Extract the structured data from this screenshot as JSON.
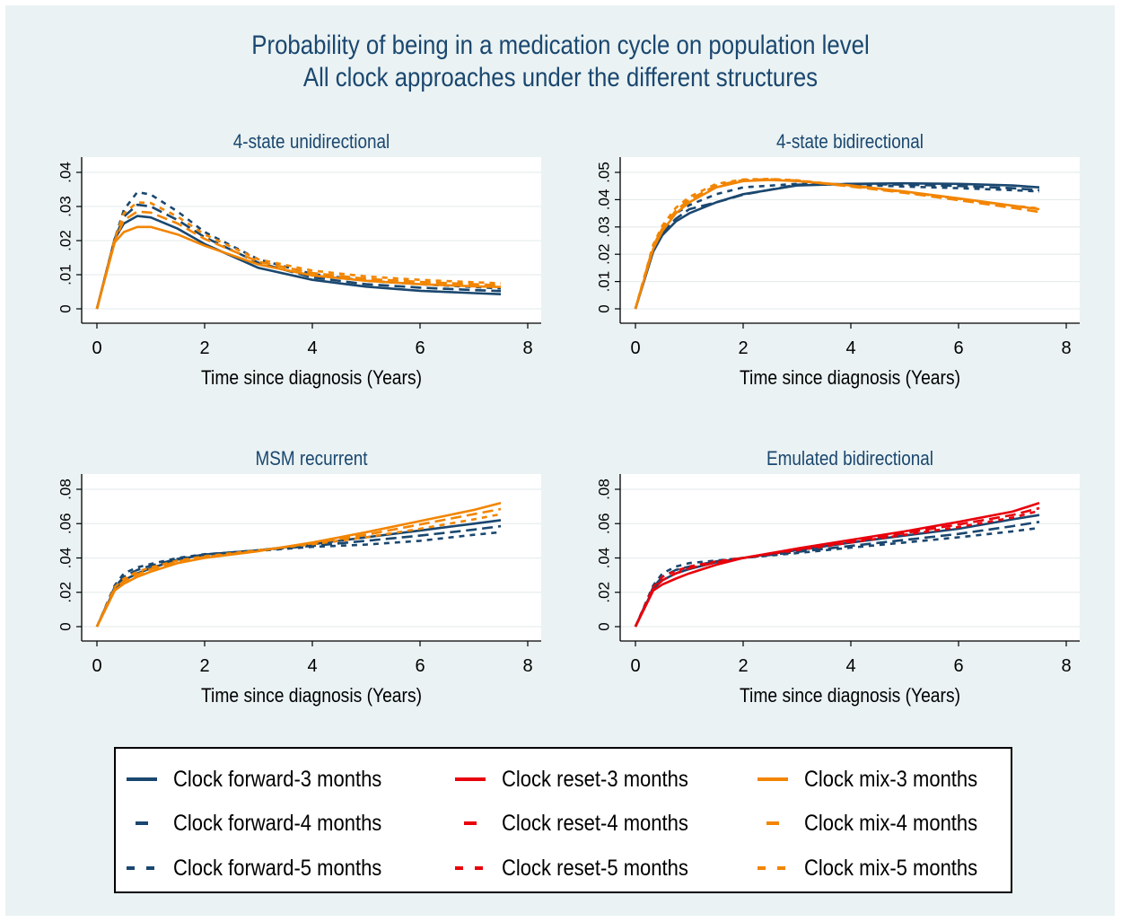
{
  "title_lines": [
    "Probability of being in a medication cycle on population level",
    "All clock approaches under the different structures"
  ],
  "colors": {
    "clock_forward": "#1a476f",
    "clock_reset": "#e8000b",
    "clock_mix": "#f28500",
    "panel_background": "#eaf2f3",
    "plot_background": "#ffffff",
    "grid": "#e8eded"
  },
  "legend": {
    "items": [
      {
        "label": "Clock forward-3 months",
        "color": "#1a476f",
        "dash": "solid"
      },
      {
        "label": "Clock reset-3 months",
        "color": "#e8000b",
        "dash": "solid"
      },
      {
        "label": "Clock mix-3 months",
        "color": "#f28500",
        "dash": "solid"
      },
      {
        "label": "Clock forward-4 months",
        "color": "#1a476f",
        "dash": "longdash"
      },
      {
        "label": "Clock reset-4 months",
        "color": "#e8000b",
        "dash": "longdash"
      },
      {
        "label": "Clock mix-4 months",
        "color": "#f28500",
        "dash": "longdash"
      },
      {
        "label": "Clock forward-5 months",
        "color": "#1a476f",
        "dash": "shortdash"
      },
      {
        "label": "Clock reset-5 months",
        "color": "#e8000b",
        "dash": "shortdash"
      },
      {
        "label": "Clock mix-5 months",
        "color": "#f28500",
        "dash": "shortdash"
      }
    ]
  },
  "chart_data": [
    {
      "type": "line",
      "title": "4-state unidirectional",
      "xlabel": "Time since diagnosis (Years)",
      "ylabel": "",
      "xlim": [
        0,
        8
      ],
      "ylim": [
        0,
        0.04
      ],
      "xticks": [
        "0",
        "2",
        "4",
        "6",
        "8"
      ],
      "yticks": [
        "0",
        ".01",
        ".02",
        ".03",
        ".04"
      ],
      "grid": true,
      "series": [
        {
          "name": "Clock forward-3 months",
          "color": "#1a476f",
          "dash": "solid",
          "x": [
            0,
            0.33,
            0.5,
            0.75,
            1,
            1.5,
            2,
            3,
            4,
            5,
            6,
            7,
            7.5
          ],
          "y": [
            0,
            0.0205,
            0.025,
            0.0272,
            0.0268,
            0.0235,
            0.019,
            0.012,
            0.0085,
            0.0065,
            0.0053,
            0.0046,
            0.0043
          ]
        },
        {
          "name": "Clock forward-4 months",
          "color": "#1a476f",
          "dash": "longdash",
          "x": [
            0,
            0.33,
            0.5,
            0.75,
            1,
            1.5,
            2,
            3,
            4,
            5,
            6,
            7,
            7.5
          ],
          "y": [
            0,
            0.0205,
            0.027,
            0.0305,
            0.03,
            0.026,
            0.021,
            0.0135,
            0.0092,
            0.0072,
            0.0062,
            0.0055,
            0.0052
          ]
        },
        {
          "name": "Clock forward-5 months",
          "color": "#1a476f",
          "dash": "shortdash",
          "x": [
            0,
            0.33,
            0.5,
            0.75,
            1,
            1.5,
            2,
            3,
            4,
            5,
            6,
            7,
            7.5
          ],
          "y": [
            0,
            0.0205,
            0.029,
            0.0342,
            0.0335,
            0.0285,
            0.0225,
            0.0145,
            0.0102,
            0.0082,
            0.0072,
            0.0064,
            0.006
          ]
        },
        {
          "name": "Clock mix-3 months",
          "color": "#f28500",
          "dash": "solid",
          "x": [
            0,
            0.33,
            0.5,
            0.75,
            1,
            1.5,
            2,
            3,
            4,
            5,
            6,
            7,
            7.5
          ],
          "y": [
            0,
            0.0195,
            0.0225,
            0.024,
            0.024,
            0.0218,
            0.0185,
            0.013,
            0.0098,
            0.0082,
            0.0072,
            0.0066,
            0.0064
          ]
        },
        {
          "name": "Clock mix-4 months",
          "color": "#f28500",
          "dash": "longdash",
          "x": [
            0,
            0.33,
            0.5,
            0.75,
            1,
            1.5,
            2,
            3,
            4,
            5,
            6,
            7,
            7.5
          ],
          "y": [
            0,
            0.02,
            0.026,
            0.0285,
            0.0282,
            0.025,
            0.0205,
            0.0138,
            0.0105,
            0.0088,
            0.0079,
            0.0072,
            0.0069
          ]
        },
        {
          "name": "Clock mix-5 months",
          "color": "#f28500",
          "dash": "shortdash",
          "x": [
            0,
            0.33,
            0.5,
            0.75,
            1,
            1.5,
            2,
            3,
            4,
            5,
            6,
            7,
            7.5
          ],
          "y": [
            0,
            0.0205,
            0.028,
            0.0312,
            0.031,
            0.027,
            0.0218,
            0.0145,
            0.0112,
            0.0095,
            0.0085,
            0.0078,
            0.0075
          ]
        }
      ]
    },
    {
      "type": "line",
      "title": "4-state bidirectional",
      "xlabel": "Time since diagnosis (Years)",
      "ylabel": "",
      "xlim": [
        0,
        8
      ],
      "ylim": [
        0,
        0.05
      ],
      "xticks": [
        "0",
        "2",
        "4",
        "6",
        "8"
      ],
      "yticks": [
        "0",
        ".01",
        ".02",
        ".03",
        ".04",
        ".05"
      ],
      "grid": true,
      "series": [
        {
          "name": "Clock forward-3 months",
          "color": "#1a476f",
          "dash": "solid",
          "x": [
            0,
            0.33,
            0.5,
            0.75,
            1,
            1.5,
            2,
            3,
            4,
            5,
            6,
            7,
            7.5
          ],
          "y": [
            0,
            0.021,
            0.027,
            0.032,
            0.035,
            0.039,
            0.042,
            0.0452,
            0.0458,
            0.046,
            0.0458,
            0.0452,
            0.0445
          ]
        },
        {
          "name": "Clock forward-4 months",
          "color": "#1a476f",
          "dash": "longdash",
          "x": [
            0,
            0.33,
            0.5,
            0.75,
            1,
            1.5,
            2,
            3,
            4,
            5,
            6,
            7,
            7.5
          ],
          "y": [
            0,
            0.022,
            0.028,
            0.033,
            0.0365,
            0.039,
            0.0418,
            0.0455,
            0.0458,
            0.0455,
            0.045,
            0.0442,
            0.0435
          ]
        },
        {
          "name": "Clock forward-5 months",
          "color": "#1a476f",
          "dash": "shortdash",
          "x": [
            0,
            0.33,
            0.5,
            0.75,
            1,
            1.5,
            2,
            3,
            4,
            5,
            6,
            7,
            7.5
          ],
          "y": [
            0,
            0.023,
            0.0295,
            0.035,
            0.038,
            0.042,
            0.0445,
            0.0458,
            0.0455,
            0.0448,
            0.0442,
            0.0435,
            0.043
          ]
        },
        {
          "name": "Clock mix-3 months",
          "color": "#f28500",
          "dash": "solid",
          "x": [
            0,
            0.33,
            0.5,
            0.75,
            1,
            1.5,
            2,
            2.5,
            3,
            4,
            5,
            6,
            7,
            7.5
          ],
          "y": [
            0,
            0.022,
            0.0285,
            0.035,
            0.039,
            0.0445,
            0.0468,
            0.0472,
            0.0468,
            0.0452,
            0.043,
            0.0405,
            0.0378,
            0.0365
          ]
        },
        {
          "name": "Clock mix-4 months",
          "color": "#f28500",
          "dash": "longdash",
          "x": [
            0,
            0.33,
            0.5,
            0.75,
            1,
            1.5,
            2,
            2.5,
            3,
            4,
            5,
            6,
            7,
            7.5
          ],
          "y": [
            0,
            0.023,
            0.0295,
            0.036,
            0.04,
            0.0452,
            0.0472,
            0.0475,
            0.047,
            0.0448,
            0.0425,
            0.0398,
            0.037,
            0.0355
          ]
        },
        {
          "name": "Clock mix-5 months",
          "color": "#f28500",
          "dash": "shortdash",
          "x": [
            0,
            0.33,
            0.5,
            0.75,
            1,
            1.5,
            2,
            2.5,
            3,
            4,
            5,
            6,
            7,
            7.5
          ],
          "y": [
            0,
            0.0235,
            0.0305,
            0.037,
            0.041,
            0.0458,
            0.0474,
            0.0476,
            0.0471,
            0.045,
            0.0428,
            0.0403,
            0.0378,
            0.0368
          ]
        }
      ]
    },
    {
      "type": "line",
      "title": "MSM recurrent",
      "xlabel": "Time since diagnosis (Years)",
      "ylabel": "",
      "xlim": [
        0,
        8
      ],
      "ylim": [
        0,
        0.08
      ],
      "xticks": [
        "0",
        "2",
        "4",
        "6",
        "8"
      ],
      "yticks": [
        "0",
        ".02",
        ".04",
        ".06",
        ".08"
      ],
      "grid": true,
      "series": [
        {
          "name": "Clock forward-3 months",
          "color": "#1a476f",
          "dash": "solid",
          "x": [
            0,
            0.33,
            0.5,
            0.75,
            1,
            1.5,
            2,
            3,
            4,
            5,
            6,
            7,
            7.5
          ],
          "y": [
            0,
            0.022,
            0.027,
            0.031,
            0.034,
            0.039,
            0.042,
            0.0445,
            0.048,
            0.052,
            0.056,
            0.06,
            0.062
          ]
        },
        {
          "name": "Clock forward-4 months",
          "color": "#1a476f",
          "dash": "longdash",
          "x": [
            0,
            0.33,
            0.5,
            0.75,
            1,
            1.5,
            2,
            3,
            4,
            5,
            6,
            7,
            7.5
          ],
          "y": [
            0,
            0.023,
            0.029,
            0.033,
            0.0355,
            0.0395,
            0.042,
            0.0445,
            0.047,
            0.05,
            0.053,
            0.0565,
            0.0585
          ]
        },
        {
          "name": "Clock forward-5 months",
          "color": "#1a476f",
          "dash": "shortdash",
          "x": [
            0,
            0.33,
            0.5,
            0.75,
            1,
            1.5,
            2,
            3,
            4,
            5,
            6,
            7,
            7.5
          ],
          "y": [
            0,
            0.024,
            0.031,
            0.0345,
            0.0365,
            0.04,
            0.0422,
            0.0442,
            0.0465,
            0.0478,
            0.05,
            0.0535,
            0.055
          ]
        },
        {
          "name": "Clock mix-3 months",
          "color": "#f28500",
          "dash": "solid",
          "x": [
            0,
            0.33,
            0.5,
            0.75,
            1,
            1.5,
            2,
            3,
            4,
            5,
            6,
            7,
            7.5
          ],
          "y": [
            0,
            0.021,
            0.025,
            0.029,
            0.032,
            0.037,
            0.04,
            0.044,
            0.049,
            0.055,
            0.0615,
            0.068,
            0.072
          ]
        },
        {
          "name": "Clock mix-4 months",
          "color": "#f28500",
          "dash": "longdash",
          "x": [
            0,
            0.33,
            0.5,
            0.75,
            1,
            1.5,
            2,
            3,
            4,
            5,
            6,
            7,
            7.5
          ],
          "y": [
            0,
            0.022,
            0.0265,
            0.0305,
            0.0335,
            0.038,
            0.0405,
            0.0442,
            0.0485,
            0.0535,
            0.0595,
            0.0655,
            0.0685
          ]
        },
        {
          "name": "Clock mix-5 months",
          "color": "#f28500",
          "dash": "shortdash",
          "x": [
            0,
            0.33,
            0.5,
            0.75,
            1,
            1.5,
            2,
            3,
            4,
            5,
            6,
            7,
            7.5
          ],
          "y": [
            0,
            0.023,
            0.028,
            0.032,
            0.0345,
            0.0385,
            0.041,
            0.0445,
            0.048,
            0.052,
            0.057,
            0.0625,
            0.0655
          ]
        }
      ]
    },
    {
      "type": "line",
      "title": "Emulated bidirectional",
      "xlabel": "Time since diagnosis (Years)",
      "ylabel": "",
      "xlim": [
        0,
        8
      ],
      "ylim": [
        0,
        0.08
      ],
      "xticks": [
        "0",
        "2",
        "4",
        "6",
        "8"
      ],
      "yticks": [
        "0",
        ".02",
        ".04",
        ".06",
        ".08"
      ],
      "grid": true,
      "series": [
        {
          "name": "Clock forward-3 months",
          "color": "#1a476f",
          "dash": "solid",
          "x": [
            0,
            0.33,
            0.5,
            0.75,
            1,
            1.5,
            2,
            3,
            4,
            5,
            6,
            7,
            7.5
          ],
          "y": [
            0,
            0.022,
            0.027,
            0.031,
            0.0335,
            0.0375,
            0.04,
            0.0445,
            0.049,
            0.053,
            0.057,
            0.0625,
            0.065
          ]
        },
        {
          "name": "Clock forward-4 months",
          "color": "#1a476f",
          "dash": "longdash",
          "x": [
            0,
            0.33,
            0.5,
            0.75,
            1,
            1.5,
            2,
            3,
            4,
            5,
            6,
            7,
            7.5
          ],
          "y": [
            0,
            0.023,
            0.029,
            0.033,
            0.035,
            0.038,
            0.04,
            0.0435,
            0.047,
            0.0505,
            0.054,
            0.0585,
            0.061
          ]
        },
        {
          "name": "Clock forward-5 months",
          "color": "#1a476f",
          "dash": "shortdash",
          "x": [
            0,
            0.33,
            0.5,
            0.75,
            1,
            1.5,
            2,
            3,
            4,
            5,
            6,
            7,
            7.5
          ],
          "y": [
            0,
            0.024,
            0.031,
            0.035,
            0.037,
            0.0385,
            0.04,
            0.0428,
            0.046,
            0.049,
            0.052,
            0.0555,
            0.0575
          ]
        },
        {
          "name": "Clock reset-3 months",
          "color": "#e8000b",
          "dash": "solid",
          "x": [
            0,
            0.33,
            0.5,
            0.75,
            1,
            1.5,
            2,
            3,
            4,
            5,
            6,
            7,
            7.5
          ],
          "y": [
            0,
            0.021,
            0.0245,
            0.028,
            0.031,
            0.036,
            0.04,
            0.0455,
            0.0505,
            0.0555,
            0.061,
            0.067,
            0.072
          ]
        },
        {
          "name": "Clock reset-4 months",
          "color": "#e8000b",
          "dash": "longdash",
          "x": [
            0,
            0.33,
            0.5,
            0.75,
            1,
            1.5,
            2,
            3,
            4,
            5,
            6,
            7,
            7.5
          ],
          "y": [
            0,
            0.022,
            0.027,
            0.031,
            0.034,
            0.0375,
            0.04,
            0.045,
            0.0495,
            0.0545,
            0.0595,
            0.065,
            0.069
          ]
        },
        {
          "name": "Clock reset-5 months",
          "color": "#e8000b",
          "dash": "shortdash",
          "x": [
            0,
            0.33,
            0.5,
            0.75,
            1,
            1.5,
            2,
            3,
            4,
            5,
            6,
            7,
            7.5
          ],
          "y": [
            0,
            0.023,
            0.029,
            0.0325,
            0.035,
            0.038,
            0.04,
            0.0445,
            0.049,
            0.0535,
            0.058,
            0.0635,
            0.0675
          ]
        }
      ]
    }
  ]
}
